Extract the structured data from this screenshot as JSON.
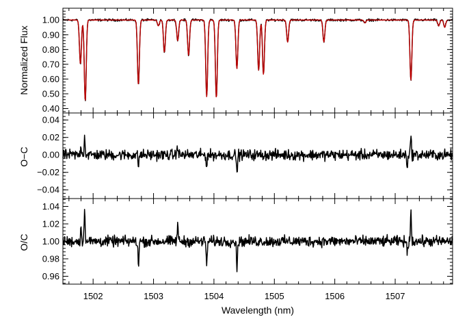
{
  "chart_data": [
    {
      "type": "line",
      "ylabel": "Normalized Flux",
      "xlim": [
        1501.5,
        1507.95
      ],
      "ylim": [
        0.37,
        1.08
      ],
      "y_ticks": [
        0.4,
        0.5,
        0.6,
        0.7,
        0.8,
        0.9,
        1.0
      ],
      "y_tick_labels": [
        "0.40",
        "0.50",
        "0.60",
        "0.70",
        "0.80",
        "0.90",
        "1.00"
      ],
      "series": [
        {
          "color": "#000000",
          "noise_amp": 0.006
        },
        {
          "color": "#c00000",
          "noise_amp": 0.0
        }
      ],
      "continuum": 1.0,
      "absorption_lines": [
        {
          "x": 1501.79,
          "depth": 0.3
        },
        {
          "x": 1501.87,
          "depth": 0.55
        },
        {
          "x": 1502.75,
          "depth": 0.44
        },
        {
          "x": 1503.08,
          "depth": 0.04
        },
        {
          "x": 1503.18,
          "depth": 0.22
        },
        {
          "x": 1503.4,
          "depth": 0.14
        },
        {
          "x": 1503.58,
          "depth": 0.24
        },
        {
          "x": 1503.88,
          "depth": 0.52
        },
        {
          "x": 1504.04,
          "depth": 0.53
        },
        {
          "x": 1504.38,
          "depth": 0.33
        },
        {
          "x": 1504.74,
          "depth": 0.34
        },
        {
          "x": 1504.82,
          "depth": 0.37
        },
        {
          "x": 1505.22,
          "depth": 0.15
        },
        {
          "x": 1505.82,
          "depth": 0.15
        },
        {
          "x": 1506.5,
          "depth": 0.02
        },
        {
          "x": 1507.26,
          "depth": 0.41
        },
        {
          "x": 1507.72,
          "depth": 0.04
        },
        {
          "x": 1507.82,
          "depth": 0.05
        }
      ]
    },
    {
      "type": "line",
      "ylabel": "O−C",
      "xlim": [
        1501.5,
        1507.95
      ],
      "ylim": [
        -0.05,
        0.048
      ],
      "y_ticks": [
        -0.04,
        -0.02,
        0.0,
        0.02,
        0.04
      ],
      "y_tick_labels": [
        "−0.04",
        "−0.02",
        "0.00",
        "0.02",
        "0.04"
      ],
      "series": [
        {
          "color": "#000000",
          "noise_amp": 0.005
        }
      ],
      "center": 0.0,
      "features": [
        {
          "x": 1501.86,
          "value": 0.022
        },
        {
          "x": 1501.8,
          "value": 0.012
        },
        {
          "x": 1502.75,
          "value": -0.012
        },
        {
          "x": 1503.4,
          "value": 0.012
        },
        {
          "x": 1503.88,
          "value": -0.013
        },
        {
          "x": 1504.38,
          "value": -0.022
        },
        {
          "x": 1507.26,
          "value": 0.022
        },
        {
          "x": 1507.2,
          "value": -0.012
        }
      ]
    },
    {
      "type": "line",
      "ylabel": "O/C",
      "xlabel": "Wavelength (nm)",
      "xlim": [
        1501.5,
        1507.95
      ],
      "ylim": [
        0.951,
        1.049
      ],
      "x_ticks": [
        1502,
        1503,
        1504,
        1505,
        1506,
        1507
      ],
      "x_tick_labels": [
        "1502",
        "1503",
        "1504",
        "1505",
        "1506",
        "1507"
      ],
      "y_ticks": [
        0.96,
        0.98,
        1.0,
        1.02,
        1.04
      ],
      "y_tick_labels": [
        "0.96",
        "0.98",
        "1.00",
        "1.02",
        "1.04"
      ],
      "series": [
        {
          "color": "#000000",
          "noise_amp": 0.005
        }
      ],
      "center": 1.0,
      "features": [
        {
          "x": 1501.86,
          "value": 1.04
        },
        {
          "x": 1501.8,
          "value": 1.015
        },
        {
          "x": 1502.75,
          "value": 0.972
        },
        {
          "x": 1503.4,
          "value": 1.02
        },
        {
          "x": 1503.88,
          "value": 0.97
        },
        {
          "x": 1504.38,
          "value": 0.968
        },
        {
          "x": 1507.26,
          "value": 1.036
        },
        {
          "x": 1507.2,
          "value": 0.985
        }
      ]
    }
  ]
}
